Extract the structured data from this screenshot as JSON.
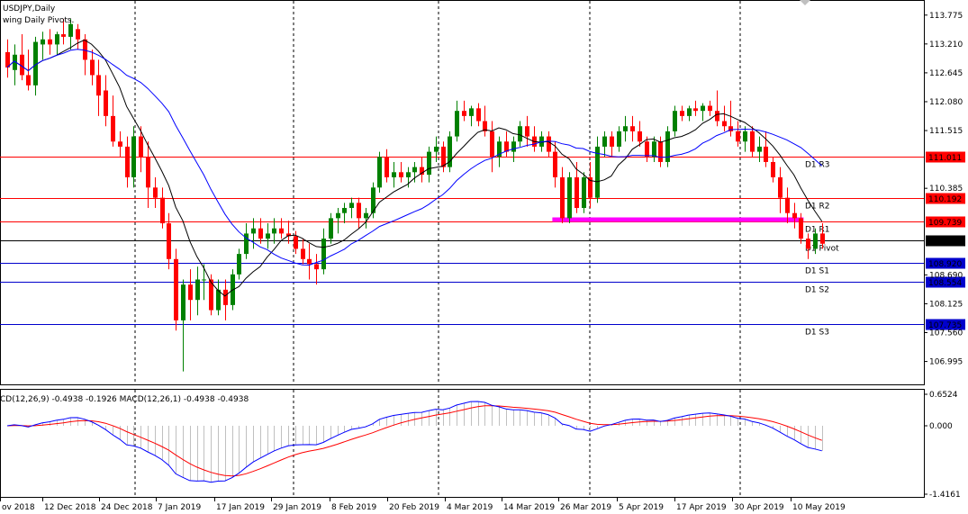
{
  "window": {
    "symbol_title": "USDJPY,Daily",
    "indicator_label": "wing Daily Pivots.",
    "macd_label": "CD(12,26,9) -0.4938 -0.1926 MACD(12,26,1) -0.4938 -0.4938"
  },
  "colors": {
    "bull": "#008000",
    "bear": "#ff0000",
    "sma_fast": "#000000",
    "sma_slow": "#0000ff",
    "resistance": "#ff0000",
    "pivot": "#000000",
    "support": "#0000cc",
    "highlight": "#ff00ff",
    "macd_signal": "#ff0000",
    "macd_line": "#0000ff",
    "macd_hist": "#c0c0c0"
  },
  "chart_data": {
    "type": "candlestick",
    "symbol": "USDJPY",
    "timeframe": "Daily",
    "y_axis_ticks": [
      "113.775",
      "113.210",
      "112.645",
      "112.080",
      "111.515",
      "110.385",
      "108.690",
      "108.125",
      "107.560",
      "106.995"
    ],
    "x_axis_ticks": [
      "ov 2018",
      "12 Dec 2018",
      "24 Dec 2018",
      "7 Jan 2019",
      "17 Jan 2019",
      "29 Jan 2019",
      "8 Feb 2019",
      "20 Feb 2019",
      "4 Mar 2019",
      "14 Mar 2019",
      "26 Mar 2019",
      "5 Apr 2019",
      "17 Apr 2019",
      "30 Apr 2019",
      "10 May 2019"
    ],
    "ylim": [
      106.6,
      114.0
    ],
    "pivot_levels": [
      {
        "label": "D1 R3",
        "value": 111.011,
        "value_label": "111.011",
        "kind": "resistance"
      },
      {
        "label": "D1 R2",
        "value": 110.192,
        "value_label": "110.192",
        "kind": "resistance"
      },
      {
        "label": "D1 R1",
        "value": 109.739,
        "value_label": "109.739",
        "kind": "resistance"
      },
      {
        "label": "D1 Pivot",
        "value": 109.373,
        "value_label": "109.373",
        "kind": "pivot"
      },
      {
        "label": "D1 S1",
        "value": 108.92,
        "value_label": "108.920",
        "kind": "support"
      },
      {
        "label": "D1 S2",
        "value": 108.554,
        "value_label": "108.554",
        "kind": "support"
      },
      {
        "label": "D1 S3",
        "value": 107.735,
        "value_label": "107.735",
        "kind": "support"
      }
    ],
    "highlight_level": 109.78,
    "candles": [
      [
        113.05,
        113.3,
        112.55,
        112.75
      ],
      [
        112.7,
        113.2,
        112.4,
        113.0
      ],
      [
        113.0,
        113.4,
        112.5,
        112.6
      ],
      [
        112.6,
        113.1,
        112.3,
        112.4
      ],
      [
        112.4,
        113.35,
        112.2,
        113.25
      ],
      [
        113.2,
        113.45,
        112.9,
        113.3
      ],
      [
        113.3,
        113.5,
        113.0,
        113.2
      ],
      [
        113.2,
        113.45,
        113.0,
        113.4
      ],
      [
        113.4,
        113.7,
        113.2,
        113.35
      ],
      [
        113.35,
        113.7,
        113.1,
        113.6
      ],
      [
        113.5,
        113.6,
        113.1,
        113.3
      ],
      [
        113.3,
        113.4,
        112.6,
        112.9
      ],
      [
        112.9,
        113.1,
        112.4,
        112.6
      ],
      [
        112.6,
        112.9,
        111.8,
        112.2
      ],
      [
        112.3,
        112.6,
        111.6,
        111.8
      ],
      [
        111.8,
        112.2,
        111.2,
        111.3
      ],
      [
        111.3,
        111.5,
        111.0,
        111.2
      ],
      [
        111.2,
        111.4,
        110.4,
        110.6
      ],
      [
        110.6,
        111.6,
        110.4,
        111.4
      ],
      [
        111.4,
        111.6,
        110.7,
        111.0
      ],
      [
        111.0,
        111.3,
        110.0,
        110.4
      ],
      [
        110.4,
        110.6,
        110.0,
        110.2
      ],
      [
        110.2,
        110.4,
        109.6,
        109.7
      ],
      [
        109.7,
        109.9,
        108.8,
        109.0
      ],
      [
        109.0,
        109.2,
        107.6,
        107.8
      ],
      [
        107.8,
        108.6,
        106.8,
        108.5
      ],
      [
        108.5,
        108.8,
        107.8,
        108.2
      ],
      [
        108.2,
        108.85,
        107.9,
        108.6
      ],
      [
        108.6,
        108.9,
        108.2,
        108.6
      ],
      [
        108.6,
        108.7,
        107.9,
        108.0
      ],
      [
        108.0,
        108.6,
        107.9,
        108.4
      ],
      [
        108.4,
        108.6,
        107.8,
        108.1
      ],
      [
        108.1,
        108.8,
        108.0,
        108.7
      ],
      [
        108.7,
        109.2,
        108.6,
        109.1
      ],
      [
        109.1,
        109.7,
        109.0,
        109.5
      ],
      [
        109.5,
        109.8,
        109.2,
        109.6
      ],
      [
        109.6,
        109.8,
        109.3,
        109.4
      ],
      [
        109.4,
        109.7,
        109.2,
        109.5
      ],
      [
        109.5,
        109.8,
        109.3,
        109.6
      ],
      [
        109.6,
        109.8,
        109.4,
        109.5
      ],
      [
        109.5,
        109.75,
        109.3,
        109.45
      ],
      [
        109.45,
        109.55,
        109.1,
        109.2
      ],
      [
        109.2,
        109.4,
        108.9,
        109.0
      ],
      [
        109.0,
        109.3,
        108.6,
        108.9
      ],
      [
        108.9,
        109.1,
        108.5,
        108.8
      ],
      [
        108.8,
        109.6,
        108.7,
        109.4
      ],
      [
        109.4,
        109.9,
        109.3,
        109.8
      ],
      [
        109.8,
        110.0,
        109.5,
        109.9
      ],
      [
        109.9,
        110.1,
        109.7,
        110.0
      ],
      [
        110.0,
        110.2,
        109.8,
        110.1
      ],
      [
        110.1,
        110.2,
        109.6,
        109.8
      ],
      [
        109.8,
        110.0,
        109.6,
        109.9
      ],
      [
        109.9,
        110.5,
        109.8,
        110.4
      ],
      [
        110.4,
        111.1,
        110.3,
        111.0
      ],
      [
        111.0,
        111.15,
        110.5,
        110.6
      ],
      [
        110.6,
        110.9,
        110.4,
        110.7
      ],
      [
        110.7,
        110.9,
        110.5,
        110.6
      ],
      [
        110.6,
        110.8,
        110.4,
        110.7
      ],
      [
        110.7,
        110.9,
        110.5,
        110.8
      ],
      [
        110.8,
        111.0,
        110.5,
        110.65
      ],
      [
        110.65,
        111.2,
        110.5,
        111.1
      ],
      [
        111.1,
        111.4,
        110.9,
        111.2
      ],
      [
        111.2,
        111.3,
        110.7,
        110.8
      ],
      [
        110.8,
        111.5,
        110.7,
        111.4
      ],
      [
        111.4,
        112.1,
        111.3,
        111.9
      ],
      [
        111.9,
        112.1,
        111.7,
        111.8
      ],
      [
        111.8,
        112.0,
        111.6,
        111.95
      ],
      [
        111.95,
        112.05,
        111.6,
        111.7
      ],
      [
        111.7,
        112.0,
        111.4,
        111.5
      ],
      [
        111.5,
        111.7,
        110.7,
        111.0
      ],
      [
        111.0,
        111.4,
        110.8,
        111.3
      ],
      [
        111.3,
        111.5,
        111.0,
        111.1
      ],
      [
        111.1,
        111.4,
        110.9,
        111.3
      ],
      [
        111.3,
        111.7,
        111.2,
        111.6
      ],
      [
        111.6,
        111.8,
        111.2,
        111.4
      ],
      [
        111.4,
        111.6,
        111.1,
        111.2
      ],
      [
        111.2,
        111.5,
        111.1,
        111.4
      ],
      [
        111.4,
        111.5,
        111.0,
        111.1
      ],
      [
        111.1,
        111.3,
        110.4,
        110.6
      ],
      [
        110.6,
        110.8,
        109.7,
        109.8
      ],
      [
        109.8,
        110.7,
        109.7,
        110.6
      ],
      [
        110.6,
        110.9,
        109.9,
        110.0
      ],
      [
        110.0,
        110.7,
        109.9,
        110.6
      ],
      [
        110.6,
        110.9,
        110.0,
        110.2
      ],
      [
        110.2,
        111.4,
        110.1,
        111.2
      ],
      [
        111.2,
        111.5,
        111.0,
        111.4
      ],
      [
        111.4,
        111.5,
        111.0,
        111.2
      ],
      [
        111.2,
        111.6,
        111.1,
        111.5
      ],
      [
        111.5,
        111.8,
        111.3,
        111.6
      ],
      [
        111.6,
        111.8,
        111.3,
        111.5
      ],
      [
        111.5,
        111.7,
        111.2,
        111.3
      ],
      [
        111.3,
        111.4,
        110.9,
        111.0
      ],
      [
        111.0,
        111.4,
        110.9,
        111.3
      ],
      [
        111.3,
        111.4,
        110.8,
        110.9
      ],
      [
        110.9,
        111.6,
        110.8,
        111.5
      ],
      [
        111.5,
        112.0,
        111.4,
        111.9
      ],
      [
        111.9,
        112.0,
        111.7,
        111.8
      ],
      [
        111.8,
        112.0,
        111.7,
        111.95
      ],
      [
        111.95,
        112.1,
        111.8,
        111.9
      ],
      [
        111.9,
        112.05,
        111.7,
        112.0
      ],
      [
        112.0,
        112.1,
        111.8,
        111.9
      ],
      [
        111.9,
        112.3,
        111.6,
        111.7
      ],
      [
        111.7,
        112.0,
        111.5,
        111.6
      ],
      [
        111.6,
        112.1,
        111.4,
        111.5
      ],
      [
        111.5,
        111.7,
        111.2,
        111.3
      ],
      [
        111.3,
        111.6,
        111.1,
        111.5
      ],
      [
        111.5,
        111.6,
        111.0,
        111.1
      ],
      [
        111.1,
        111.4,
        110.9,
        111.2
      ],
      [
        111.2,
        111.5,
        110.8,
        110.9
      ],
      [
        110.9,
        111.0,
        110.5,
        110.6
      ],
      [
        110.6,
        110.8,
        109.9,
        110.2
      ],
      [
        110.2,
        110.4,
        109.7,
        109.9
      ],
      [
        109.9,
        110.1,
        109.6,
        109.8
      ],
      [
        109.8,
        109.9,
        109.3,
        109.4
      ],
      [
        109.4,
        109.5,
        109.0,
        109.2
      ],
      [
        109.2,
        109.6,
        109.1,
        109.5
      ],
      [
        109.5,
        109.7,
        109.2,
        109.3
      ]
    ],
    "macd_ylim": [
      -1.4161,
      0.6524
    ],
    "macd_axis_ticks": [
      "0.6524",
      "0.000",
      "-1.4161"
    ]
  }
}
